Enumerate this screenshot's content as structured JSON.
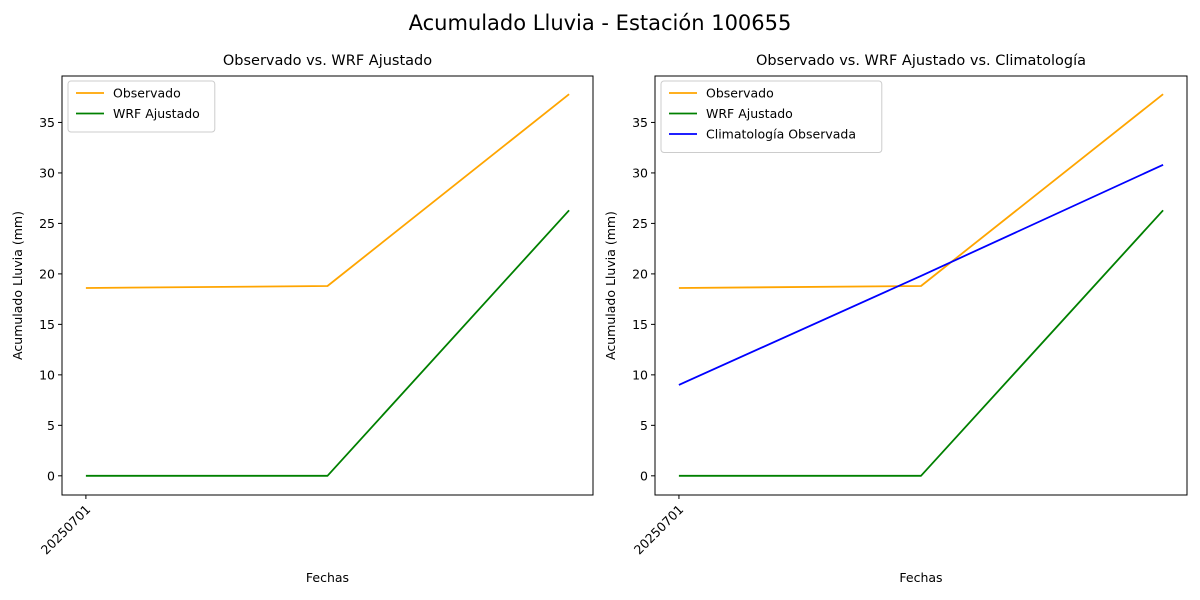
{
  "figure": {
    "suptitle": "Acumulado Lluvia - Estación 100655"
  },
  "chart_data": [
    {
      "type": "line",
      "title": "Observado vs. WRF Ajustado",
      "xlabel": "Fechas",
      "ylabel": "Acumulado Lluvia (mm)",
      "x_tick_labels": [
        "20250701"
      ],
      "ylim": [
        -1.9,
        39.6
      ],
      "y_ticks": [
        0,
        5,
        10,
        15,
        20,
        25,
        30,
        35
      ],
      "legend_position": "upper-left",
      "grid": false,
      "series": [
        {
          "name": "Observado",
          "color": "#ffa500",
          "values": [
            18.6,
            18.8,
            37.8
          ]
        },
        {
          "name": "WRF Ajustado",
          "color": "#008000",
          "values": [
            0.0,
            0.0,
            26.3
          ]
        }
      ]
    },
    {
      "type": "line",
      "title": "Observado vs. WRF Ajustado vs. Climatología",
      "xlabel": "Fechas",
      "ylabel": "Acumulado Lluvia (mm)",
      "x_tick_labels": [
        "20250701"
      ],
      "ylim": [
        -1.9,
        39.6
      ],
      "y_ticks": [
        0,
        5,
        10,
        15,
        20,
        25,
        30,
        35
      ],
      "legend_position": "upper-left",
      "grid": false,
      "series": [
        {
          "name": "Observado",
          "color": "#ffa500",
          "values": [
            18.6,
            18.8,
            37.8
          ]
        },
        {
          "name": "WRF Ajustado",
          "color": "#008000",
          "values": [
            0.0,
            0.0,
            26.3
          ]
        },
        {
          "name": "Climatología Observada",
          "color": "#0000ff",
          "values": [
            9.0,
            19.8,
            30.8
          ]
        }
      ]
    }
  ]
}
